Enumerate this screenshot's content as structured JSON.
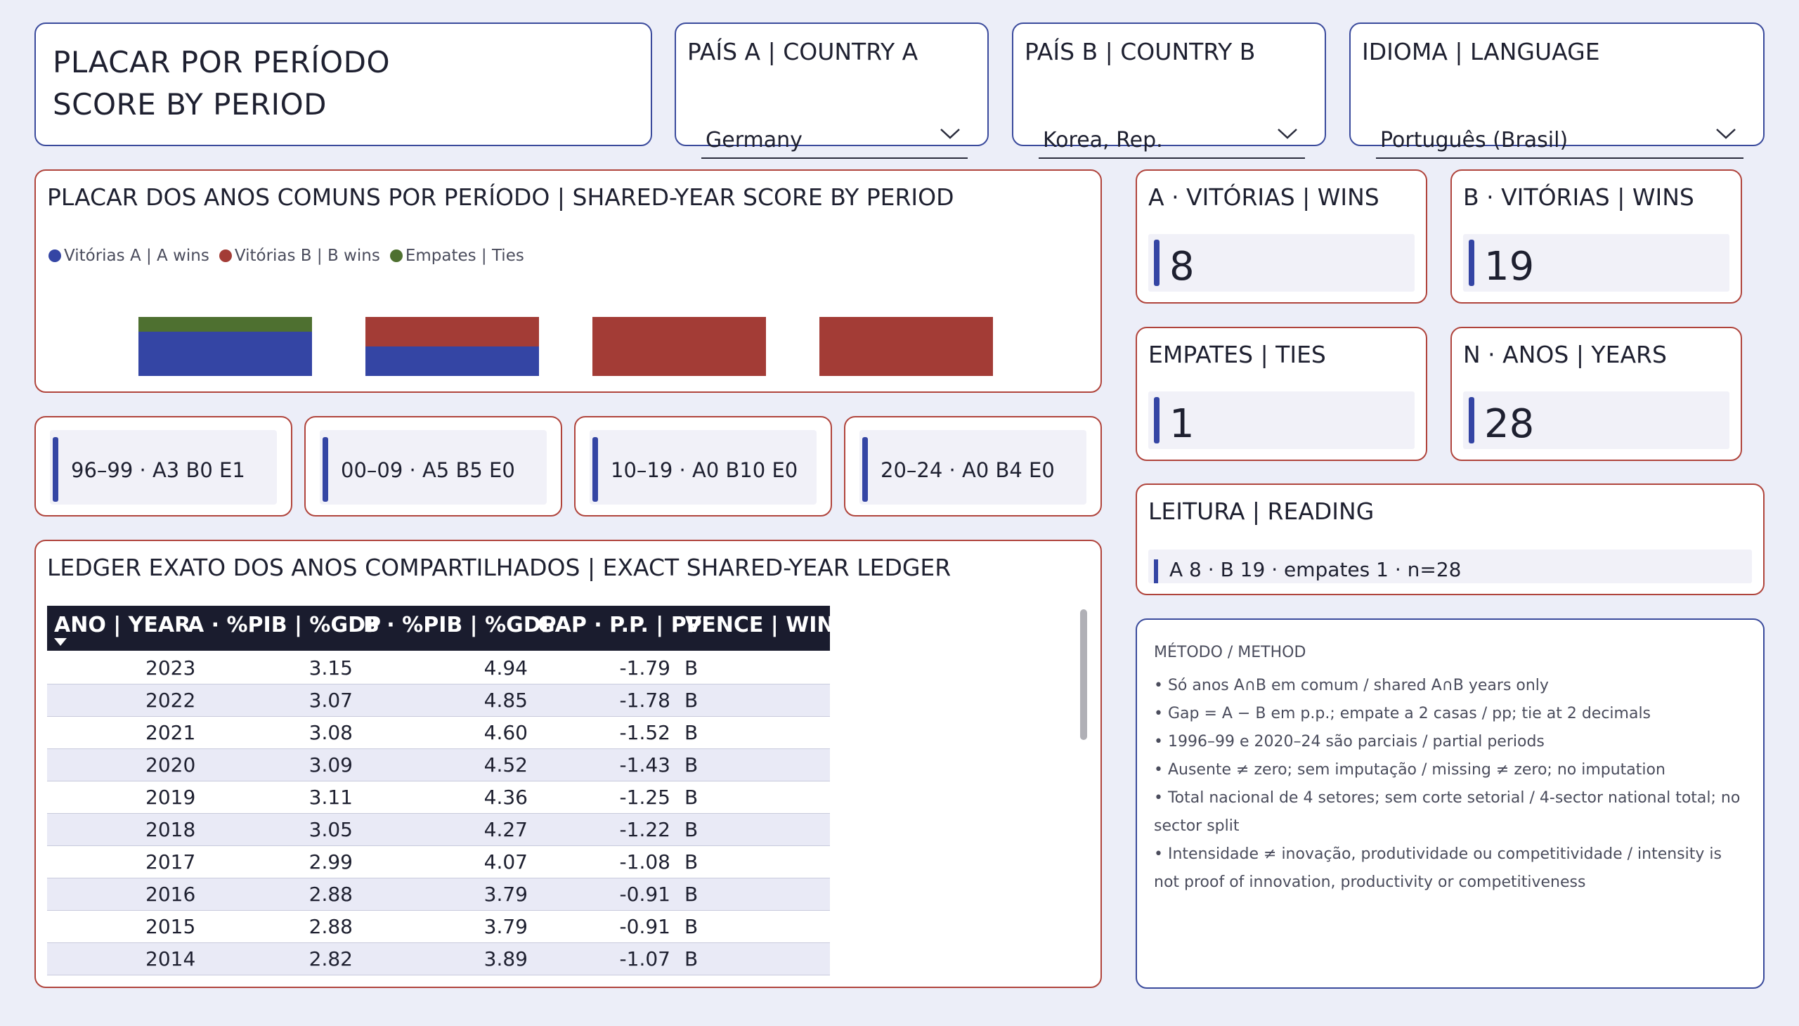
{
  "header": {
    "title_line1": "PLACAR POR PERÍODO",
    "title_line2": "SCORE BY PERIOD"
  },
  "slicers": {
    "country_a": {
      "label": "PAÍS A | COUNTRY A",
      "value": "Germany"
    },
    "country_b": {
      "label": "PAÍS B | COUNTRY B",
      "value": "Korea, Rep."
    },
    "language": {
      "label": "IDIOMA | LANGUAGE",
      "value": "Português (Brasil)"
    }
  },
  "period_chart": {
    "title": "PLACAR DOS ANOS COMUNS POR PERÍODO | SHARED-YEAR SCORE BY PERIOD",
    "legend": [
      {
        "name": "Vitórias A | A wins",
        "color": "#3445a4"
      },
      {
        "name": "Vitórias B | B wins",
        "color": "#a33c36"
      },
      {
        "name": "Empates | Ties",
        "color": "#4e7030"
      }
    ]
  },
  "chart_data": {
    "type": "bar",
    "stacked": true,
    "normalized": true,
    "categories": [
      "1996–99",
      "2000–09",
      "2010–19",
      "2020–24"
    ],
    "series": [
      {
        "name": "Vitórias A | A wins",
        "values": [
          3,
          5,
          0,
          0
        ]
      },
      {
        "name": "Vitórias B | B wins",
        "values": [
          0,
          5,
          10,
          4
        ]
      },
      {
        "name": "Empates | Ties",
        "values": [
          1,
          0,
          0,
          0
        ]
      }
    ],
    "legend": "top-left"
  },
  "period_tiles": [
    "96–99 · A3 B0 E1",
    "00–09 · A5 B5 E0",
    "10–19 · A0 B10 E0",
    "20–24 · A0 B4 E0"
  ],
  "ledger": {
    "title": "LEDGER EXATO DOS ANOS COMPARTILHADOS | EXACT SHARED-YEAR LEDGER",
    "columns": [
      "ANO | YEAR",
      "A · %PIB | %GDP",
      "B · %PIB | %GDP",
      "GAP · P.P. | PP",
      "VENCE | WINS"
    ],
    "rows": [
      [
        "2023",
        "3.15",
        "4.94",
        "-1.79",
        "B"
      ],
      [
        "2022",
        "3.07",
        "4.85",
        "-1.78",
        "B"
      ],
      [
        "2021",
        "3.08",
        "4.60",
        "-1.52",
        "B"
      ],
      [
        "2020",
        "3.09",
        "4.52",
        "-1.43",
        "B"
      ],
      [
        "2019",
        "3.11",
        "4.36",
        "-1.25",
        "B"
      ],
      [
        "2018",
        "3.05",
        "4.27",
        "-1.22",
        "B"
      ],
      [
        "2017",
        "2.99",
        "4.07",
        "-1.08",
        "B"
      ],
      [
        "2016",
        "2.88",
        "3.79",
        "-0.91",
        "B"
      ],
      [
        "2015",
        "2.88",
        "3.79",
        "-0.91",
        "B"
      ],
      [
        "2014",
        "2.82",
        "3.89",
        "-1.07",
        "B"
      ]
    ]
  },
  "kpis": {
    "a_wins": {
      "label": "A · VITÓRIAS | WINS",
      "value": "8"
    },
    "b_wins": {
      "label": "B · VITÓRIAS | WINS",
      "value": "19"
    },
    "ties": {
      "label": "EMPATES | TIES",
      "value": "1"
    },
    "years": {
      "label": "N · ANOS | YEARS",
      "value": "28"
    }
  },
  "reading": {
    "label": "LEITURA | READING",
    "text": "A 8 · B 19 · empates 1 · n=28"
  },
  "method": {
    "title": "MÉTODO / METHOD",
    "lines": [
      "• Só anos A∩B em comum / shared A∩B years only",
      "• Gap = A − B em p.p.; empate a 2 casas / pp; tie at 2 decimals",
      "• 1996–99 e 2020–24 são parciais / partial periods",
      "• Ausente ≠ zero; sem imputação / missing ≠ zero; no imputation",
      "• Total nacional de 4 setores; sem corte setorial / 4-sector national total; no sector split",
      "• Intensidade ≠ inovação, produtividade ou competitividade / intensity is not proof of innovation, productivity or competitiveness"
    ]
  },
  "colors": {
    "a": "#3445a4",
    "b": "#a33c36",
    "tie": "#4e7030",
    "header_bg": "#1a1c2e"
  }
}
